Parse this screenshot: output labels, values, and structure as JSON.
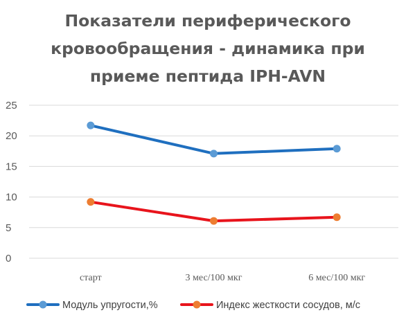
{
  "chart_data": {
    "type": "line",
    "title_lines": [
      "Показатели периферического",
      "кровообращения - динамика при",
      "приеме пептида IPH-AVN"
    ],
    "categories": [
      "старт",
      "3 мес/100 мкг",
      "6 мес/100 мкг"
    ],
    "series": [
      {
        "name": "Модуль упругости,%",
        "values": [
          21.7,
          17.1,
          17.9
        ],
        "color": "#1f6fbf",
        "marker_color": "#5b9bd5"
      },
      {
        "name": "Индекс жесткости сосудов, м/с",
        "values": [
          9.2,
          6.1,
          6.7
        ],
        "color": "#e8141c",
        "marker_color": "#ed7d31"
      }
    ],
    "y_ticks": [
      0,
      5,
      10,
      15,
      20,
      25
    ],
    "ylim": [
      0,
      25
    ],
    "grid": true,
    "legend_position": "bottom",
    "xlabel": "",
    "ylabel": ""
  }
}
